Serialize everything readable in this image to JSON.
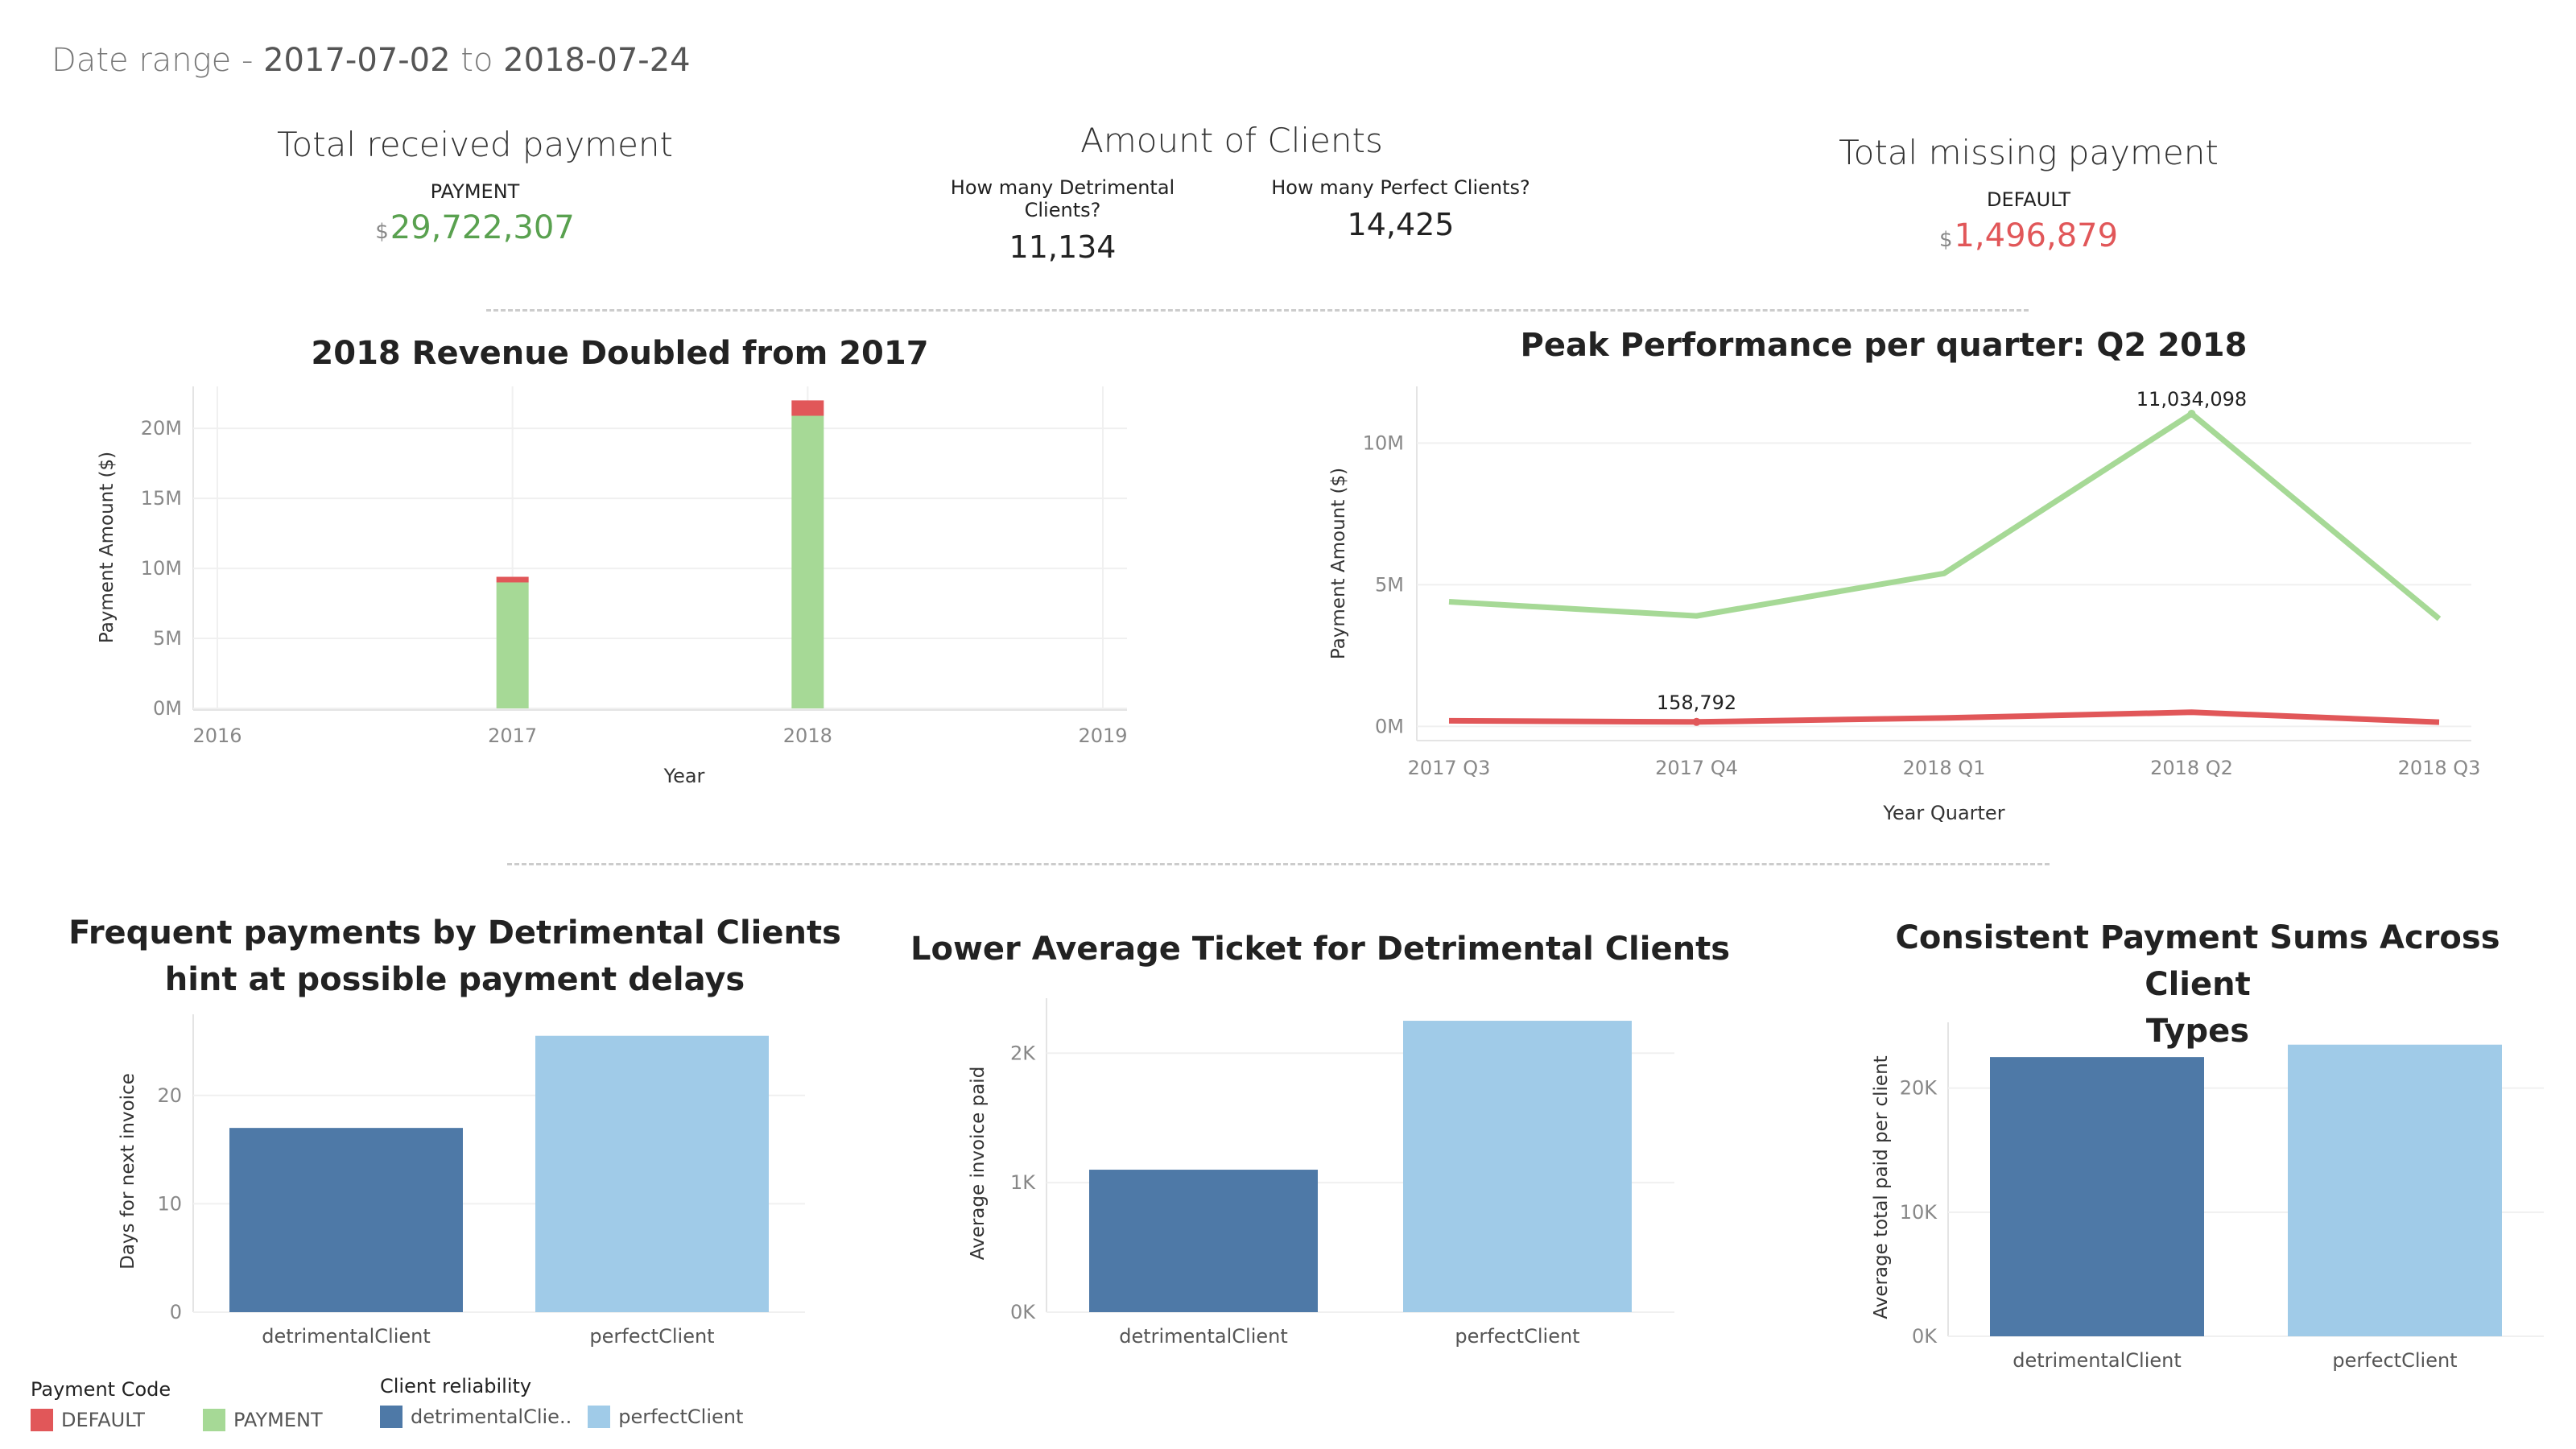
{
  "header": {
    "date_range_label": "Date range - ",
    "start_date": "2017-07-02",
    "to_label": " to ",
    "end_date": "2018-07-24"
  },
  "kpis": {
    "received": {
      "title": "Total received payment",
      "label": "PAYMENT",
      "currency": "$",
      "value": "29,722,307",
      "color": "#59a14f"
    },
    "clients": {
      "title": "Amount of Clients",
      "detrimental_label": "How many Detrimental Clients?",
      "detrimental_value": "11,134",
      "perfect_label": "How many Perfect Clients?",
      "perfect_value": "14,425"
    },
    "missing": {
      "title": "Total missing payment",
      "label": "DEFAULT",
      "currency": "$",
      "value": "1,496,879",
      "color": "#e15759"
    }
  },
  "colors": {
    "payment": "#a6d996",
    "default": "#e15759",
    "detrimental": "#4e79a7",
    "perfect": "#a0cbe8",
    "line_payment": "#a6d996",
    "line_default": "#e15759"
  },
  "legend": {
    "payment_code_title": "Payment Code",
    "default_label": "DEFAULT",
    "payment_label": "PAYMENT",
    "client_reliability_title": "Client reliability",
    "detrimental_label": "detrimentalClie..",
    "perfect_label": "perfectClient"
  },
  "chart_data": [
    {
      "type": "bar",
      "stacked": true,
      "title": "2018 Revenue Doubled from 2017",
      "xlabel": "Year",
      "ylabel": "Payment Amount ($)",
      "categories": [
        "2016",
        "2017",
        "2018",
        "2019"
      ],
      "series": [
        {
          "name": "PAYMENT",
          "values": [
            0,
            9000000,
            20900000,
            0
          ]
        },
        {
          "name": "DEFAULT",
          "values": [
            0,
            400000,
            1100000,
            0
          ]
        }
      ],
      "yticks": [
        "0M",
        "5M",
        "10M",
        "15M",
        "20M"
      ],
      "ytick_values": [
        0,
        5000000,
        10000000,
        15000000,
        20000000
      ],
      "ylim": [
        0,
        23000000
      ],
      "grid": true
    },
    {
      "type": "line",
      "title": "Peak Performance per quarter: Q2 2018",
      "xlabel": "Year Quarter",
      "ylabel": "Payment Amount ($)",
      "categories": [
        "2017 Q3",
        "2017 Q4",
        "2018 Q1",
        "2018 Q2",
        "2018 Q3"
      ],
      "series": [
        {
          "name": "PAYMENT",
          "values": [
            4400000,
            3900000,
            5400000,
            11034098,
            3800000
          ]
        },
        {
          "name": "DEFAULT",
          "values": [
            200000,
            158792,
            300000,
            500000,
            150000
          ]
        }
      ],
      "annotations": [
        {
          "series": 0,
          "index": 3,
          "text": "11,034,098"
        },
        {
          "series": 1,
          "index": 1,
          "text": "158,792"
        }
      ],
      "yticks": [
        "0M",
        "5M",
        "10M"
      ],
      "ytick_values": [
        0,
        5000000,
        10000000
      ],
      "ylim": [
        -500000,
        12000000
      ],
      "grid": true
    },
    {
      "type": "bar",
      "title": "Frequent payments by Detrimental Clients hint at possible payment delays",
      "title_lines": [
        "Frequent payments by Detrimental Clients",
        "hint at possible payment delays"
      ],
      "xlabel": "",
      "ylabel": "Days for next invoice",
      "categories": [
        "detrimentalClient",
        "perfectClient"
      ],
      "values": [
        17,
        25.5
      ],
      "yticks": [
        "0",
        "10",
        "20"
      ],
      "ytick_values": [
        0,
        10,
        20
      ],
      "ylim": [
        0,
        26
      ],
      "grid": true
    },
    {
      "type": "bar",
      "title": "Lower Average Ticket for Detrimental Clients",
      "title_lines": [
        "Lower Average Ticket for Detrimental Clients"
      ],
      "xlabel": "",
      "ylabel": "Average invoice paid",
      "categories": [
        "detrimentalClient",
        "perfectClient"
      ],
      "values": [
        1100,
        2250
      ],
      "yticks": [
        "0K",
        "1K",
        "2K"
      ],
      "ytick_values": [
        0,
        1000,
        2000
      ],
      "ylim": [
        0,
        2300
      ],
      "grid": true
    },
    {
      "type": "bar",
      "title": "Consistent Payment Sums Across Client Types",
      "title_lines": [
        "Consistent Payment Sums Across Client",
        "Types"
      ],
      "xlabel": "",
      "ylabel": "Average total paid per client",
      "categories": [
        "detrimentalClient",
        "perfectClient"
      ],
      "values": [
        22500,
        23500
      ],
      "yticks": [
        "0K",
        "10K",
        "20K"
      ],
      "ytick_values": [
        0,
        10000,
        20000
      ],
      "ylim": [
        0,
        24000
      ],
      "grid": true
    }
  ]
}
